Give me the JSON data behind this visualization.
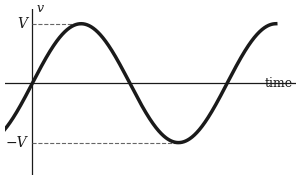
{
  "background_color": "#ffffff",
  "sine_color": "#1a1a1a",
  "sine_linewidth": 2.5,
  "axis_color": "#1a1a1a",
  "dashed_color": "#666666",
  "amplitude": 1.0,
  "label_v_top": "V",
  "label_v_bottom": "−V",
  "label_v_axis": "v",
  "label_time": "time",
  "fontsize_v_labels": 10,
  "fontsize_axis_label": 9,
  "fig_width": 3.0,
  "fig_height": 1.76,
  "dpi": 100,
  "x_min": -0.9,
  "x_max": 8.5,
  "y_min": -1.55,
  "y_max": 1.25,
  "sine_phase": -0.9,
  "sine_x_end": 7.85
}
